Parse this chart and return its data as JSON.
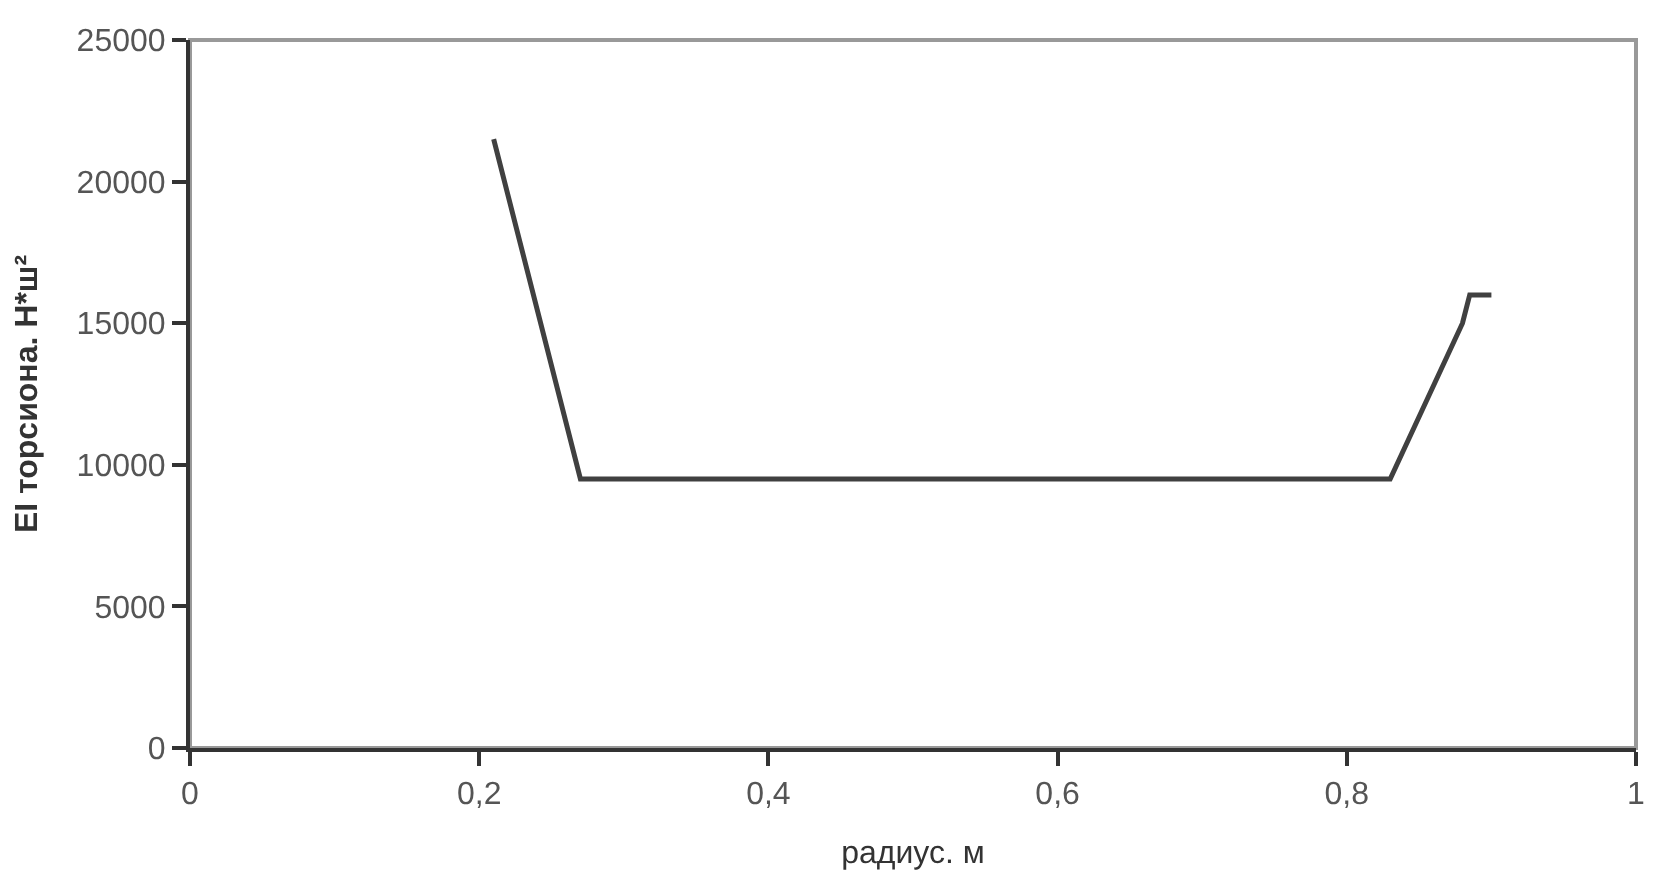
{
  "chart_data": {
    "type": "line",
    "xlabel": "радиус. м",
    "ylabel": "EI торсиона. Н*ш²",
    "x": [
      0.21,
      0.27,
      0.83,
      0.88,
      0.885,
      0.9
    ],
    "series": [
      {
        "color": "#404040",
        "values": [
          21500,
          9500,
          9500,
          15000,
          16000,
          16000
        ]
      }
    ],
    "xlim": [
      0,
      1
    ],
    "xticks": [
      0,
      {
        "value": 0.2,
        "label": "0,2"
      },
      {
        "value": 0.4,
        "label": "0,4"
      },
      {
        "value": 0.6,
        "label": "0,6"
      },
      {
        "value": 0.8,
        "label": "0,8"
      },
      1
    ],
    "ylim": [
      0,
      25000
    ],
    "yticks": [
      0,
      5000,
      10000,
      15000,
      20000,
      25000
    ],
    "grid": false,
    "legend": false,
    "marker": "none",
    "line_style": "solid"
  }
}
